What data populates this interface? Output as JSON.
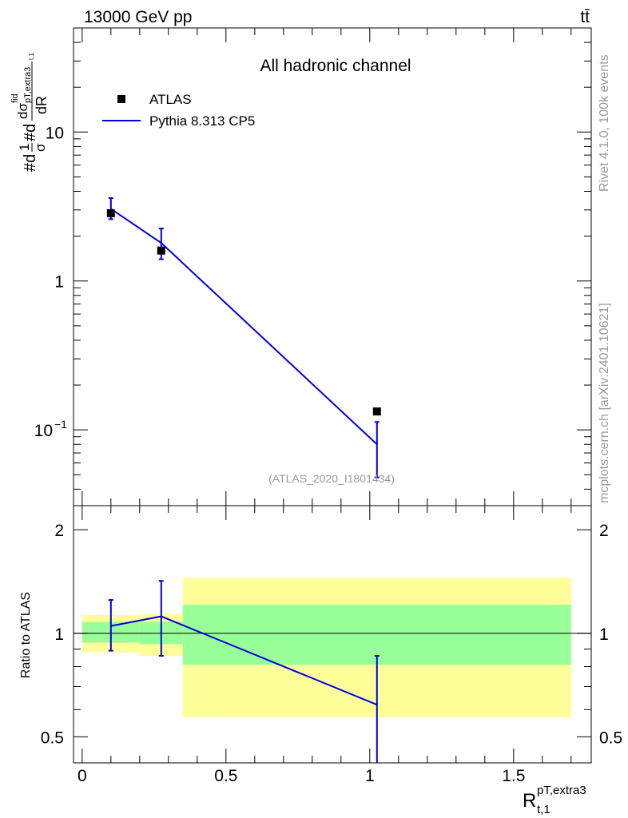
{
  "header": {
    "energy_label": "13000 GeV pp",
    "process_label": "tt̄",
    "channel_title": "All hadronic channel",
    "analysis_id": "(ATLAS_2020_I1801434)",
    "side_label_rivet": "Rivet 4.1.0,  100k events",
    "side_label_mcplots": "mcplots.cern.ch [arXiv:2401.10621]"
  },
  "axes": {
    "main_ylabel_text": "#d¹/σ #d dσ / dR",
    "ylabel_frac_top": "1",
    "ylabel_frac_bottom": "σ",
    "ylabel_hash1": "#d",
    "ylabel_hash2": "#d",
    "ylabel_dsigma": "dσ",
    "ylabel_fid": "fid",
    "ylabel_sub": "pT,extra3",
    "ylabel_subsub": "t,1",
    "ylabel_dR": "dR",
    "ratio_ylabel": "Ratio to ATLAS",
    "xlabel_main": "R",
    "xlabel_sup": "pT,extra3",
    "xlabel_sub": "t,1",
    "main_yticks": [
      {
        "value": 0.1,
        "label": "10",
        "exp": "−1"
      },
      {
        "value": 1,
        "label": "1",
        "exp": ""
      },
      {
        "value": 10,
        "label": "10",
        "exp": ""
      }
    ],
    "ratio_yticks": [
      {
        "value": 0.5,
        "label": "0.5"
      },
      {
        "value": 1,
        "label": "1"
      },
      {
        "value": 2,
        "label": "2"
      }
    ],
    "xticks": [
      {
        "value": 0,
        "label": "0"
      },
      {
        "value": 0.5,
        "label": "0.5"
      },
      {
        "value": 1,
        "label": "1"
      },
      {
        "value": 1.5,
        "label": "1.5"
      }
    ]
  },
  "legend": {
    "atlas_label": "ATLAS",
    "pythia_label": "Pythia 8.313 CP5"
  },
  "colors": {
    "data": "#000000",
    "mc": "#0000e0",
    "band_inner": "#99ff99",
    "band_outer": "#ffff99",
    "watermark": "#999999"
  },
  "chart_data": {
    "type": "line",
    "title": "All hadronic channel",
    "xlim": [
      -0.03,
      1.77
    ],
    "main_ylim": [
      0.031,
      50
    ],
    "ratio_ylim": [
      0.42,
      2.35
    ],
    "main_yscale": "log",
    "ratio_yscale": "log",
    "bins": [
      {
        "low": 0.0,
        "high": 0.2,
        "center": 0.1
      },
      {
        "low": 0.2,
        "high": 0.35,
        "center": 0.275
      },
      {
        "low": 0.35,
        "high": 1.7,
        "center": 1.025
      }
    ],
    "series": [
      {
        "name": "ATLAS",
        "x": [
          0.1,
          0.275,
          1.025
        ],
        "values": [
          2.85,
          1.6,
          0.133
        ]
      },
      {
        "name": "Pythia 8.313 CP5",
        "x": [
          0.1,
          0.275,
          1.025
        ],
        "values": [
          3.05,
          1.8,
          0.08
        ],
        "err_low": [
          2.6,
          1.4,
          0.048
        ],
        "err_high": [
          3.6,
          2.25,
          0.113
        ]
      }
    ],
    "ratio": {
      "x": [
        0.1,
        0.275,
        1.025
      ],
      "values": [
        1.05,
        1.12,
        0.62
      ],
      "err_low": [
        0.89,
        0.86,
        0.38
      ],
      "err_high": [
        1.25,
        1.42,
        0.86
      ],
      "band_inner_low": [
        0.94,
        0.93,
        0.81
      ],
      "band_inner_high": [
        1.08,
        1.08,
        1.21
      ],
      "band_outer_low": [
        0.88,
        0.86,
        0.57
      ],
      "band_outer_high": [
        1.13,
        1.14,
        1.45
      ]
    }
  }
}
